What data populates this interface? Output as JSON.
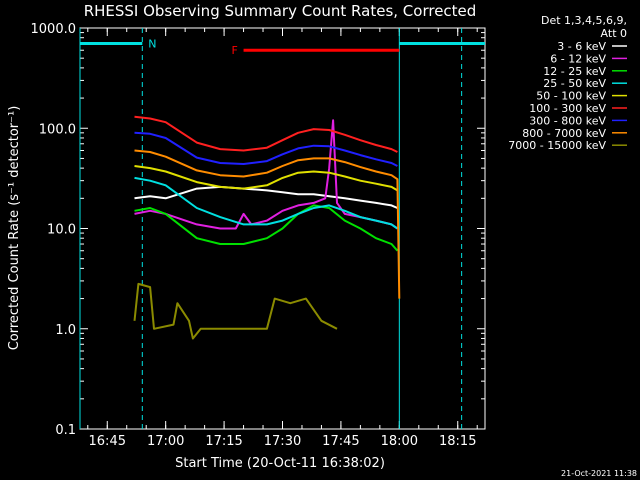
{
  "chart_data": {
    "type": "line",
    "title": "RHESSI Observing Summary Count Rates, Corrected",
    "xlabel": "Start Time (20-Oct-11 16:38:02)",
    "ylabel": "Corrected Count Rate (s⁻¹ detector⁻¹)",
    "yscale": "log",
    "ylim": [
      0.1,
      1000
    ],
    "xlim_minutes": [
      0,
      104
    ],
    "xticks": [
      {
        "m": 7,
        "label": "16:45"
      },
      {
        "m": 22,
        "label": "17:00"
      },
      {
        "m": 37,
        "label": "17:15"
      },
      {
        "m": 52,
        "label": "17:30"
      },
      {
        "m": 67,
        "label": "17:45"
      },
      {
        "m": 82,
        "label": "18:00"
      },
      {
        "m": 97,
        "label": "18:15"
      }
    ],
    "yticks": [
      {
        "v": 1000,
        "label": "1000.0"
      },
      {
        "v": 100,
        "label": "100.0"
      },
      {
        "v": 10,
        "label": "10.0"
      },
      {
        "v": 1,
        "label": "1.0"
      },
      {
        "v": 0.1,
        "label": "0.1"
      }
    ],
    "legend_header": [
      "Det 1,3,4,5,6,9,",
      "Att 0"
    ],
    "legend_position": "top-right",
    "series": [
      {
        "name": "3 - 6 keV",
        "color": "#ffffff",
        "x": [
          14,
          18,
          22,
          30,
          36,
          42,
          48,
          52,
          56,
          60,
          64,
          68,
          72,
          76,
          80,
          81.5
        ],
        "y": [
          20,
          21,
          20,
          25,
          26,
          25,
          24,
          23,
          22,
          22,
          21,
          20,
          19,
          18,
          17,
          16
        ]
      },
      {
        "name": "6 - 12 keV",
        "color": "#e020e0",
        "x": [
          14,
          18,
          22,
          30,
          36,
          40,
          42,
          44,
          48,
          52,
          56,
          60,
          63,
          64,
          65,
          66,
          68,
          72,
          76,
          80,
          81.5
        ],
        "y": [
          14,
          15,
          14,
          11,
          10,
          10,
          14,
          11,
          12,
          15,
          17,
          18,
          20,
          40,
          120,
          18,
          14,
          13,
          12,
          11,
          10
        ]
      },
      {
        "name": "12 - 25 keV",
        "color": "#00e000",
        "x": [
          14,
          18,
          22,
          30,
          36,
          42,
          48,
          52,
          56,
          60,
          64,
          68,
          72,
          76,
          80,
          81.5
        ],
        "y": [
          15,
          16,
          14,
          8,
          7,
          7,
          8,
          10,
          14,
          17,
          16,
          12,
          10,
          8,
          7,
          6
        ]
      },
      {
        "name": "25 - 50 keV",
        "color": "#00e0e0",
        "x": [
          14,
          18,
          22,
          30,
          36,
          42,
          48,
          52,
          56,
          60,
          64,
          68,
          72,
          76,
          80,
          81.5
        ],
        "y": [
          32,
          30,
          27,
          16,
          13,
          11,
          11,
          12,
          14,
          16,
          17,
          15,
          13,
          12,
          11,
          10
        ]
      },
      {
        "name": "50 - 100 keV",
        "color": "#e0e000",
        "x": [
          14,
          18,
          22,
          30,
          36,
          42,
          48,
          52,
          56,
          60,
          64,
          68,
          72,
          76,
          80,
          81.5
        ],
        "y": [
          42,
          40,
          37,
          29,
          26,
          25,
          27,
          32,
          36,
          37,
          36,
          33,
          30,
          28,
          26,
          24
        ]
      },
      {
        "name": "100 - 300 keV",
        "color": "#ff2020",
        "x": [
          14,
          18,
          22,
          30,
          36,
          42,
          48,
          52,
          56,
          60,
          64,
          68,
          72,
          76,
          80,
          81.5
        ],
        "y": [
          130,
          125,
          115,
          72,
          62,
          60,
          64,
          76,
          90,
          98,
          96,
          86,
          76,
          68,
          62,
          58
        ]
      },
      {
        "name": "300 - 800 keV",
        "color": "#2020ff",
        "x": [
          14,
          18,
          22,
          30,
          36,
          42,
          48,
          52,
          56,
          60,
          64,
          68,
          72,
          76,
          80,
          81.5
        ],
        "y": [
          90,
          88,
          80,
          51,
          45,
          44,
          47,
          55,
          63,
          67,
          66,
          60,
          54,
          49,
          45,
          42
        ]
      },
      {
        "name": "800 - 7000 keV",
        "color": "#ff8c00",
        "x": [
          14,
          18,
          22,
          30,
          36,
          42,
          48,
          52,
          56,
          60,
          64,
          68,
          72,
          76,
          80,
          81.5,
          82
        ],
        "y": [
          60,
          58,
          52,
          38,
          34,
          33,
          36,
          42,
          48,
          50,
          50,
          46,
          41,
          37,
          34,
          31,
          2
        ]
      },
      {
        "name": "7000 - 15000 keV",
        "color": "#8b8b00",
        "x": [
          14,
          15,
          18,
          19,
          24,
          25,
          28,
          29,
          31,
          48,
          50,
          54,
          58,
          62,
          66
        ],
        "y": [
          1.2,
          2.8,
          2.6,
          1.0,
          1.1,
          1.8,
          1.2,
          0.8,
          1.0,
          1.0,
          2.0,
          1.8,
          2.0,
          1.2,
          1.0
        ]
      }
    ],
    "attenuator_markers": [
      {
        "label": "N",
        "color": "#00e0e0",
        "x_start": 0,
        "x_end": 16,
        "x_start2": 82,
        "x_end2": 104,
        "y": 700
      },
      {
        "label": "F",
        "color": "#ff0000",
        "x_start": 42,
        "x_end": 82,
        "y": 600
      }
    ],
    "vertical_lines": [
      {
        "x": 0,
        "color": "#00e0e0",
        "style": "solid"
      },
      {
        "x": 16,
        "color": "#00e0e0",
        "style": "dashed"
      },
      {
        "x": 82,
        "color": "#00e0e0",
        "style": "solid"
      },
      {
        "x": 98,
        "color": "#00e0e0",
        "style": "dashed"
      }
    ]
  },
  "footer": {
    "datestamp": "21-Oct-2021 11:38"
  }
}
